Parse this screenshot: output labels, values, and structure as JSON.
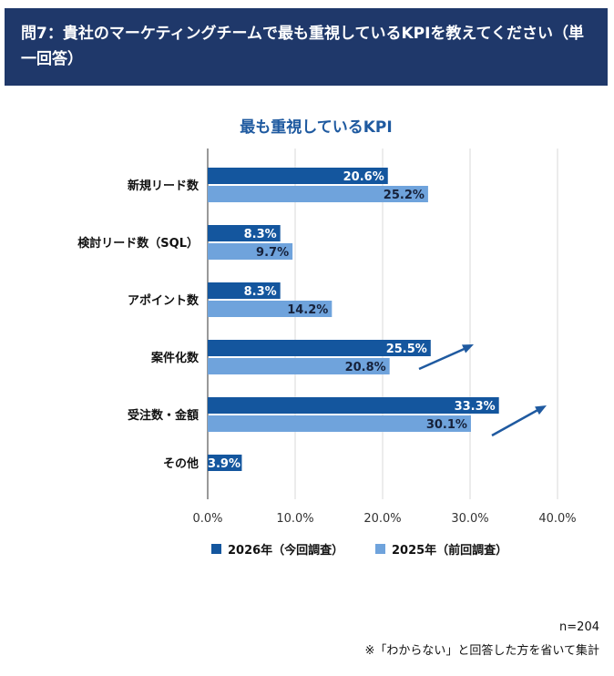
{
  "header": {
    "title": "問7：貴社のマーケティングチームで最も重視しているKPIを教えてください（単一回答）"
  },
  "chart_data": {
    "type": "bar",
    "orientation": "horizontal",
    "title": "最も重視しているKPI",
    "categories": [
      "新規リード数",
      "検討リード数（SQL）",
      "アポイント数",
      "案件化数",
      "受注数・金額",
      "その他"
    ],
    "series": [
      {
        "name": "2026年（今回調査）",
        "color": "#14569e",
        "values": [
          20.6,
          8.3,
          8.3,
          25.5,
          33.3,
          3.9
        ],
        "labels": [
          "20.6%",
          "8.3%",
          "8.3%",
          "25.5%",
          "33.3%",
          "3.9%"
        ]
      },
      {
        "name": "2025年（前回調査）",
        "color": "#6fa3dc",
        "values": [
          25.2,
          9.7,
          14.2,
          20.8,
          30.1,
          null
        ],
        "labels": [
          "25.2%",
          "9.7%",
          "14.2%",
          "20.8%",
          "30.1%",
          null
        ]
      }
    ],
    "xlim": [
      0,
      40
    ],
    "xticks": [
      "0.0%",
      "10.0%",
      "20.0%",
      "30.0%",
      "40.0%"
    ],
    "grid": true,
    "legend": "bottom",
    "annotations": [
      "upward-arrow near 案件化数",
      "upward-arrow near 受注数・金額"
    ]
  },
  "footer": {
    "n": "n=204",
    "note": "※「わからない」と回答した方を省いて集計"
  }
}
